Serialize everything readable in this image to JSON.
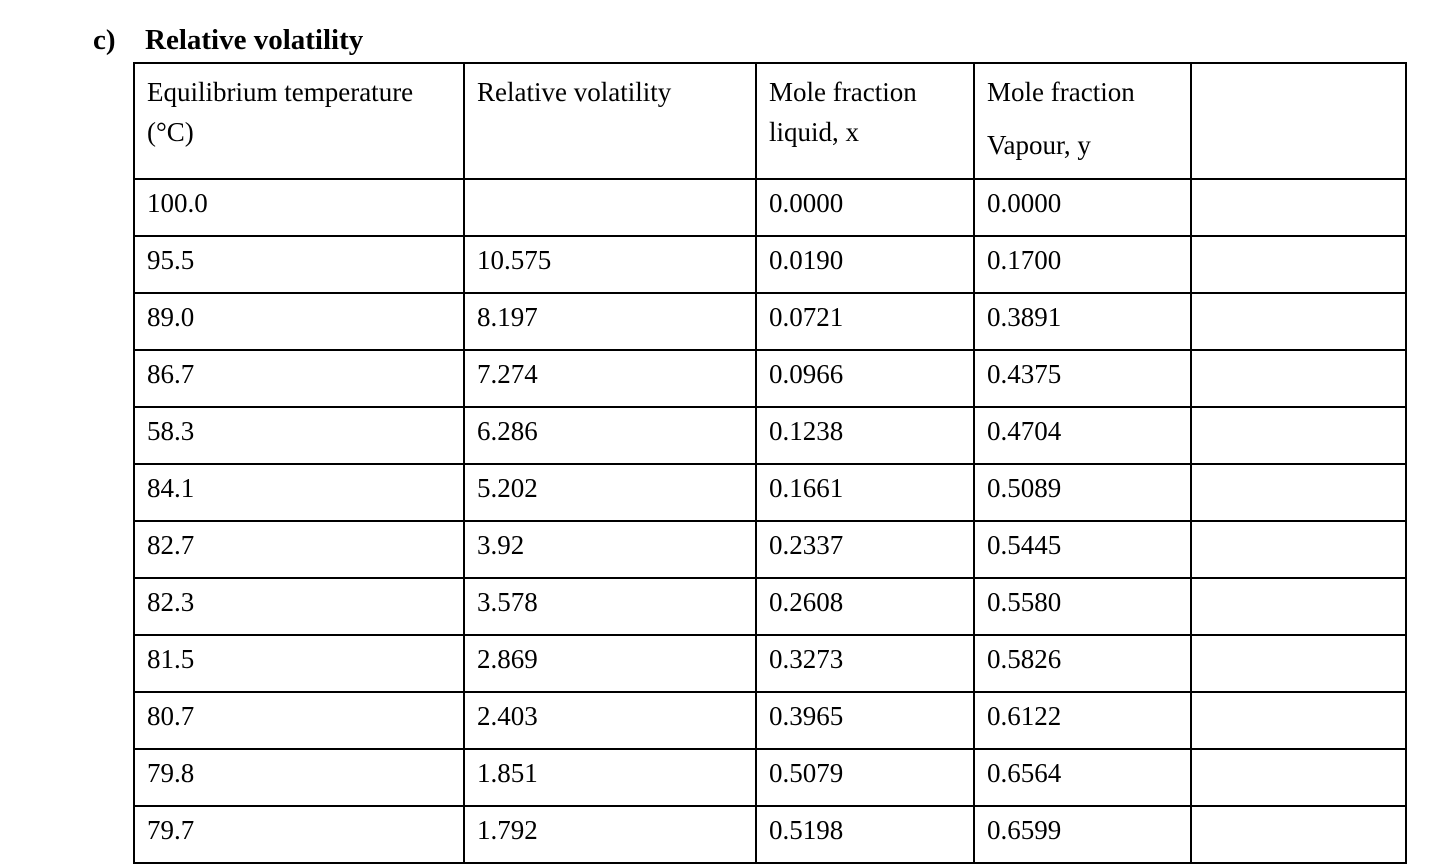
{
  "document": {
    "section_label": "c)",
    "section_title": "Relative volatility"
  },
  "table": {
    "headers": {
      "col1": {
        "line1": "Equilibrium temperature",
        "line2": "(°C)"
      },
      "col2": {
        "line1": "Relative volatility",
        "line2": ""
      },
      "col3": {
        "line1": "Mole fraction",
        "line2": "liquid, x"
      },
      "col4": {
        "line1": "Mole fraction",
        "line2": "Vapour, y"
      },
      "col5": {
        "line1": "",
        "line2": ""
      }
    },
    "rows": [
      [
        "100.0",
        "",
        "0.0000",
        "0.0000",
        ""
      ],
      [
        "95.5",
        "10.575",
        "0.0190",
        "0.1700",
        ""
      ],
      [
        "89.0",
        "8.197",
        "0.0721",
        "0.3891",
        ""
      ],
      [
        "86.7",
        "7.274",
        "0.0966",
        "0.4375",
        ""
      ],
      [
        "58.3",
        "6.286",
        "0.1238",
        "0.4704",
        ""
      ],
      [
        "84.1",
        "5.202",
        "0.1661",
        "0.5089",
        ""
      ],
      [
        "82.7",
        "3.92",
        "0.2337",
        "0.5445",
        ""
      ],
      [
        "82.3",
        "3.578",
        "0.2608",
        "0.5580",
        ""
      ],
      [
        "81.5",
        "2.869",
        "0.3273",
        "0.5826",
        ""
      ],
      [
        "80.7",
        "2.403",
        "0.3965",
        "0.6122",
        ""
      ],
      [
        "79.8",
        "1.851",
        "0.5079",
        "0.6564",
        ""
      ],
      [
        "79.7",
        "1.792",
        "0.5198",
        "0.6599",
        ""
      ]
    ],
    "colors": {
      "border": "#000000",
      "text": "#000000",
      "background": "#ffffff"
    }
  }
}
